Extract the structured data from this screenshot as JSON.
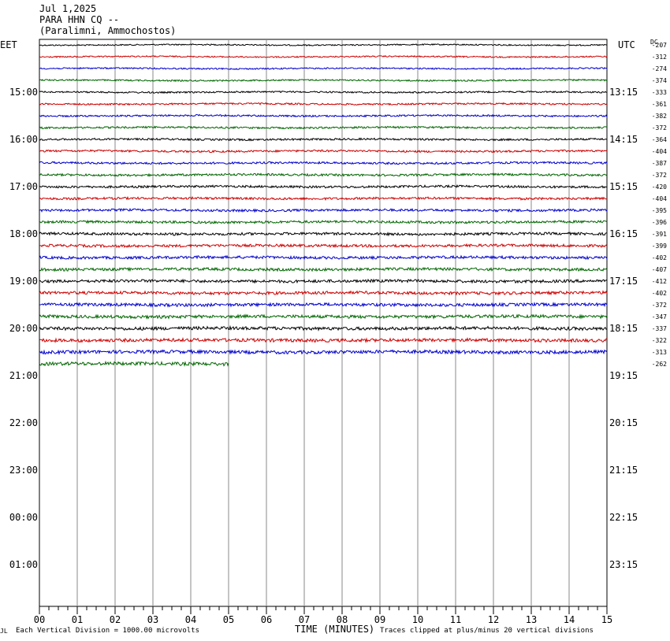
{
  "header": {
    "date": "Jul 1,2025",
    "station": "PARA HHN CQ --",
    "location": "(Paralimni, Ammochostos)"
  },
  "chart_data": {
    "type": "line",
    "left_axis_title": "EET",
    "right_axis_title": "UTC",
    "dc_header": "DC",
    "xlabel": "TIME (MINUTES)",
    "x_ticks": [
      "00",
      "01",
      "02",
      "03",
      "04",
      "05",
      "06",
      "07",
      "08",
      "09",
      "10",
      "11",
      "12",
      "13",
      "14",
      "15"
    ],
    "xlim": [
      0,
      15
    ],
    "left_hour_labels": [
      "15:00",
      "16:00",
      "17:00",
      "18:00",
      "19:00",
      "20:00",
      "21:00",
      "22:00",
      "23:00",
      "00:00",
      "01:00"
    ],
    "right_hour_labels": [
      "13:15",
      "14:15",
      "15:15",
      "16:15",
      "17:15",
      "18:15",
      "19:15",
      "20:15",
      "21:15",
      "22:15",
      "23:15"
    ],
    "trace_colors": [
      "#000000",
      "#cc0000",
      "#0000cc",
      "#006600"
    ],
    "traces": [
      {
        "dc": "-207",
        "minutes": 15
      },
      {
        "dc": "-312",
        "minutes": 15
      },
      {
        "dc": "-274",
        "minutes": 15
      },
      {
        "dc": "-374",
        "minutes": 15
      },
      {
        "dc": "-333",
        "minutes": 15
      },
      {
        "dc": "-361",
        "minutes": 15
      },
      {
        "dc": "-382",
        "minutes": 15
      },
      {
        "dc": "-372",
        "minutes": 15
      },
      {
        "dc": "-364",
        "minutes": 15
      },
      {
        "dc": "-404",
        "minutes": 15
      },
      {
        "dc": "-387",
        "minutes": 15
      },
      {
        "dc": "-372",
        "minutes": 15
      },
      {
        "dc": "-420",
        "minutes": 15
      },
      {
        "dc": "-404",
        "minutes": 15
      },
      {
        "dc": "-395",
        "minutes": 15
      },
      {
        "dc": "-396",
        "minutes": 15
      },
      {
        "dc": "-391",
        "minutes": 15
      },
      {
        "dc": "-399",
        "minutes": 15
      },
      {
        "dc": "-402",
        "minutes": 15
      },
      {
        "dc": "-407",
        "minutes": 15
      },
      {
        "dc": "-412",
        "minutes": 15
      },
      {
        "dc": "-402",
        "minutes": 15
      },
      {
        "dc": "-372",
        "minutes": 15
      },
      {
        "dc": "-347",
        "minutes": 15
      },
      {
        "dc": "-337",
        "minutes": 15
      },
      {
        "dc": "-322",
        "minutes": 15
      },
      {
        "dc": "-313",
        "minutes": 15
      },
      {
        "dc": "-262",
        "minutes": 5
      }
    ],
    "footer_left": "Each Vertical Division = 1000.00 microvolts",
    "footer_right": "Traces clipped at plus/minus 20 vertical divisions",
    "logo_text": "JL"
  }
}
